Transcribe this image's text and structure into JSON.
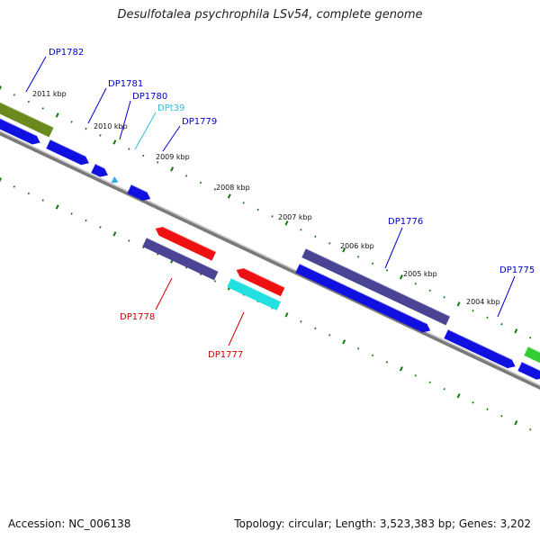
{
  "title": "Desulfotalea psychrophila LSv54, complete genome",
  "footer": {
    "accession": "Accession: NC_006138",
    "meta": "Topology: circular; Length: 3,523,383 bp; Genes: 3,202"
  },
  "scale_labels": [
    "2011 kbp",
    "2010 kbp",
    "2009 kbp",
    "2008 kbp",
    "2007 kbp",
    "2006 kbp",
    "2005 kbp",
    "2004 kbp"
  ],
  "genes": [
    {
      "id": "DP1782",
      "color": "#0000cc"
    },
    {
      "id": "DP1781",
      "color": "#0000cc"
    },
    {
      "id": "DP1780",
      "color": "#0000cc"
    },
    {
      "id": "DPt39",
      "color": "#33bbdd"
    },
    {
      "id": "DP1779",
      "color": "#0000cc"
    },
    {
      "id": "DP1776",
      "color": "#0000cc"
    },
    {
      "id": "DP1775",
      "color": "#0000cc"
    },
    {
      "id": "DP1778",
      "color": "#cc0000"
    },
    {
      "id": "DP1777",
      "color": "#cc0000"
    }
  ],
  "feature_colors": {
    "cds_forward": "#1010e0",
    "cds_reverse": "#ee1111",
    "gene_olive": "#6b8a1e",
    "gene_purple": "#4a4494",
    "gene_cyan": "#22e0e0",
    "gene_green": "#33cc33",
    "trna": "#33aaee",
    "backbone": "#888888",
    "ticks": "#117711"
  }
}
